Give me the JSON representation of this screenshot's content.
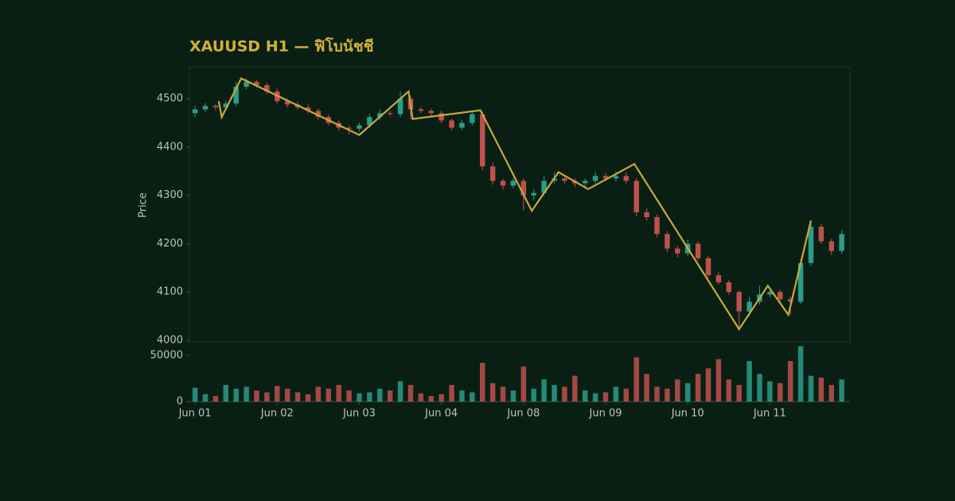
{
  "chart_data": {
    "type": "candlestick",
    "title": "XAUUSD H1 — ฟิโบนัชชี",
    "ylabel": "Price",
    "categories": [
      "Jun 01",
      null,
      null,
      null,
      null,
      null,
      null,
      null,
      "Jun 02",
      null,
      null,
      null,
      null,
      null,
      null,
      null,
      "Jun 03",
      null,
      null,
      null,
      null,
      null,
      null,
      null,
      "Jun 04",
      null,
      null,
      null,
      null,
      null,
      null,
      null,
      "Jun 08",
      null,
      null,
      null,
      null,
      null,
      null,
      null,
      "Jun 09",
      null,
      null,
      null,
      null,
      null,
      null,
      null,
      "Jun 10",
      null,
      null,
      null,
      null,
      null,
      null,
      null,
      "Jun 11",
      null,
      null,
      null,
      null,
      null,
      null,
      null
    ],
    "open": [
      4470,
      4478,
      4485,
      4482,
      4490,
      4525,
      4535,
      4528,
      4515,
      4495,
      4488,
      4482,
      4475,
      4462,
      4450,
      4440,
      4438,
      4445,
      4462,
      4470,
      4468,
      4500,
      4478,
      4475,
      4470,
      4455,
      4440,
      4450,
      4468,
      4360,
      4330,
      4320,
      4330,
      4300,
      4305,
      4330,
      4335,
      4330,
      4325,
      4330,
      4340,
      4335,
      4340,
      4330,
      4265,
      4255,
      4220,
      4190,
      4180,
      4200,
      4170,
      4135,
      4120,
      4100,
      4060,
      4080,
      4095,
      4100,
      4085,
      4080,
      4160,
      4235,
      4205,
      4185
    ],
    "high": [
      4485,
      4491,
      4490,
      4496,
      4535,
      4542,
      4539,
      4533,
      4521,
      4500,
      4494,
      4488,
      4480,
      4468,
      4455,
      4444,
      4450,
      4469,
      4478,
      4475,
      4515,
      4506,
      4483,
      4480,
      4475,
      4459,
      4456,
      4476,
      4474,
      4368,
      4335,
      4336,
      4335,
      4313,
      4340,
      4348,
      4340,
      4336,
      4335,
      4348,
      4346,
      4350,
      4348,
      4336,
      4273,
      4261,
      4225,
      4196,
      4208,
      4205,
      4175,
      4141,
      4125,
      4104,
      4090,
      4113,
      4108,
      4105,
      4091,
      4168,
      4248,
      4241,
      4210,
      4228
    ],
    "low": [
      4462,
      4473,
      4476,
      4477,
      4485,
      4519,
      4523,
      4509,
      4490,
      4482,
      4477,
      4469,
      4456,
      4445,
      4434,
      4426,
      4432,
      4440,
      4456,
      4463,
      4462,
      4458,
      4470,
      4464,
      4449,
      4434,
      4435,
      4445,
      4352,
      4322,
      4312,
      4315,
      4268,
      4290,
      4300,
      4324,
      4324,
      4317,
      4313,
      4324,
      4330,
      4329,
      4324,
      4257,
      4248,
      4214,
      4182,
      4172,
      4174,
      4165,
      4129,
      4115,
      4094,
      4023,
      4050,
      4074,
      4089,
      4077,
      4053,
      4075,
      4154,
      4200,
      4177,
      4179
    ],
    "close": [
      4478,
      4485,
      4482,
      4490,
      4525,
      4535,
      4528,
      4515,
      4495,
      4488,
      4482,
      4475,
      4462,
      4450,
      4440,
      4438,
      4445,
      4462,
      4470,
      4468,
      4500,
      4478,
      4475,
      4470,
      4455,
      4440,
      4450,
      4468,
      4360,
      4330,
      4320,
      4330,
      4300,
      4305,
      4330,
      4335,
      4330,
      4325,
      4330,
      4340,
      4335,
      4340,
      4330,
      4265,
      4255,
      4220,
      4190,
      4180,
      4200,
      4170,
      4135,
      4120,
      4100,
      4060,
      4080,
      4095,
      4100,
      4085,
      4080,
      4160,
      4235,
      4205,
      4185,
      4220
    ],
    "volume": [
      15000,
      8000,
      6000,
      18000,
      14000,
      16000,
      12000,
      10000,
      17000,
      14000,
      10000,
      8000,
      16000,
      14000,
      18000,
      12000,
      9000,
      10000,
      14000,
      12000,
      22000,
      18000,
      9000,
      6000,
      8000,
      18000,
      12000,
      10000,
      42000,
      20000,
      16000,
      12000,
      38000,
      14000,
      24000,
      18000,
      16000,
      28000,
      12000,
      9000,
      10000,
      16000,
      14000,
      48000,
      30000,
      16000,
      14000,
      24000,
      20000,
      30000,
      36000,
      46000,
      24000,
      18000,
      44000,
      30000,
      22000,
      20000,
      44000,
      60000,
      28000,
      26000,
      18000,
      24000
    ],
    "up_color": "#2a9d8a",
    "down_color": "#c0504d",
    "zigzag": {
      "color": "#c9a83a",
      "x": [
        2.3,
        2.6,
        4.5,
        16,
        20.8,
        21.2,
        27.8,
        32.8,
        35.4,
        38.3,
        42.8,
        53,
        55.8,
        57.8,
        60
      ],
      "y": [
        4495,
        4462,
        4542,
        4425,
        4515,
        4458,
        4476,
        4268,
        4348,
        4313,
        4365,
        4023,
        4113,
        4053,
        4248
      ]
    },
    "ylim": [
      4000,
      4566
    ],
    "yticks": [
      4000,
      4100,
      4200,
      4300,
      4400,
      4500
    ],
    "y2lim": [
      0,
      64650
    ],
    "y2ticks": [
      0,
      50000
    ]
  }
}
